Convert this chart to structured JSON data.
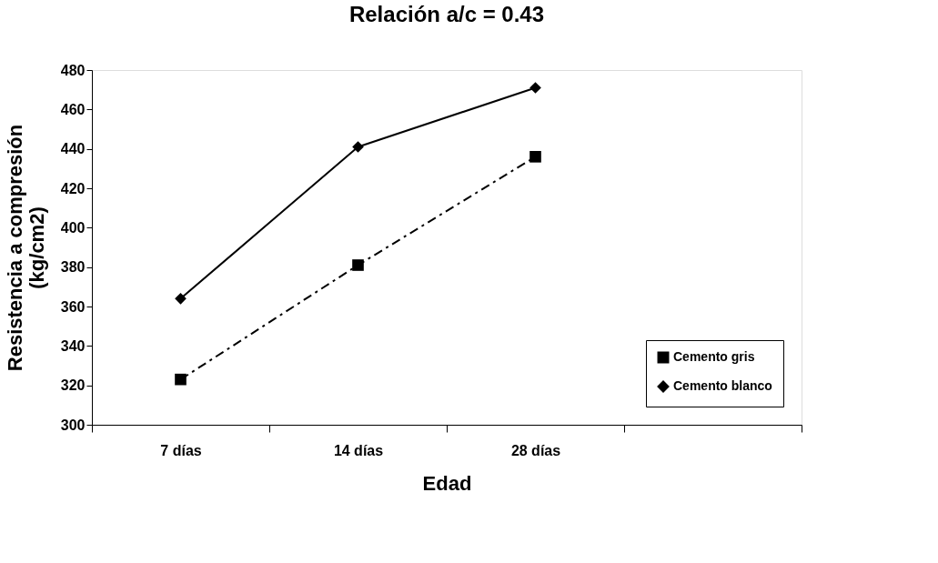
{
  "chart_data": {
    "type": "line",
    "title": "Relación a/c = 0.43",
    "xlabel": "Edad",
    "ylabel": "Resistencia a compresión (kg/cm2)",
    "categories": [
      "7 días",
      "14 días",
      "28 días",
      null
    ],
    "series": [
      {
        "name": "Cemento gris",
        "color": "#000000",
        "marker": "square",
        "line_style": "dashdot",
        "values": [
          323,
          381,
          436,
          null
        ]
      },
      {
        "name": "Cemento blanco",
        "color": "#000000",
        "marker": "diamond",
        "line_style": "solid",
        "values": [
          364,
          441,
          471,
          null
        ]
      }
    ],
    "ylim": [
      300,
      480
    ],
    "yticks": [
      300,
      320,
      340,
      360,
      380,
      400,
      420,
      440,
      460,
      480
    ],
    "grid": false,
    "legend": "bottom right"
  }
}
